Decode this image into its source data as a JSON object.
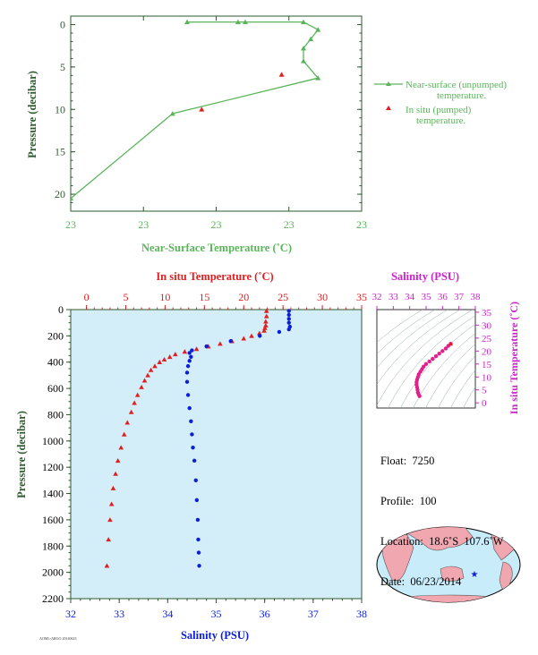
{
  "colors": {
    "green": "#5ab55a",
    "red": "#e02020",
    "blue": "#0a1fd6",
    "magenta": "#cc22cc",
    "axis_dark_green": "#2f5a2f",
    "plot_bg": "#d4eef9",
    "land": "#f1a7b0",
    "ocean": "#c9ecfa"
  },
  "info": {
    "float": "Float:  7250",
    "profile": "Profile:  100",
    "location": "Location:  18.6˚S  107.6˚W",
    "date": "Date:  06/23/2014"
  },
  "footnote": "AOML-ARGO 20140623",
  "chart_data": [
    {
      "id": "near-surface",
      "type": "line",
      "xlabel": "Near-Surface Temperature (˚C)",
      "ylabel": "Pressure (decibar)",
      "x_tick_labels": [
        "23",
        "23",
        "23",
        "23",
        "23"
      ],
      "y_ticks": [
        0,
        5,
        10,
        15,
        20
      ],
      "ylim": [
        22,
        -1
      ],
      "grid": false,
      "series": [
        {
          "name": "Near-surface (unpumped) temperature.",
          "marker": "triangle",
          "x": [
            23.16,
            23.23,
            23.24,
            23.32,
            23.34,
            23.33,
            23.32,
            23.32,
            23.34,
            23.14,
            23.0
          ],
          "y": [
            -0.3,
            -0.3,
            -0.3,
            -0.3,
            0.6,
            1.7,
            2.8,
            4.3,
            6.3,
            10.5,
            20.5
          ]
        },
        {
          "name": "In situ (pumped) temperature.",
          "marker": "triangle",
          "x": [
            23.29,
            23.18
          ],
          "y": [
            5.9,
            10.0
          ]
        }
      ],
      "legend_position": "right"
    },
    {
      "id": "profile",
      "type": "scatter",
      "top_xlabel": "In situ Temperature (˚C)",
      "top_x_ticks": [
        0,
        5,
        10,
        15,
        20,
        25,
        30,
        35
      ],
      "top_xlim": [
        -2,
        35
      ],
      "bottom_xlabel": "Salinity (PSU)",
      "bottom_x_ticks": [
        32,
        33,
        34,
        35,
        36,
        37,
        38
      ],
      "bottom_xlim": [
        32,
        38
      ],
      "ylabel": "Pressure (decibar)",
      "y_ticks": [
        0,
        200,
        400,
        600,
        800,
        1000,
        1200,
        1400,
        1600,
        1800,
        2000,
        2200
      ],
      "ylim": [
        2200,
        0
      ],
      "series": [
        {
          "name": "In situ Temperature",
          "marker": "triangle",
          "temperature": [
            22.9,
            22.9,
            22.8,
            22.8,
            22.7,
            22.6,
            22.0,
            21.0,
            20.0,
            18.5,
            17.0,
            15.5,
            14.0,
            12.5,
            11.3,
            10.6,
            9.9,
            9.3,
            8.7,
            8.2,
            7.8,
            7.4,
            7.0,
            6.5,
            6.1,
            5.7,
            5.2,
            4.8,
            4.4,
            4.0,
            3.7,
            3.4,
            3.2,
            3.0,
            2.8,
            2.6
          ],
          "pressure": [
            10,
            50,
            90,
            120,
            140,
            160,
            180,
            200,
            220,
            240,
            260,
            280,
            300,
            320,
            340,
            360,
            380,
            400,
            430,
            460,
            500,
            540,
            590,
            650,
            710,
            780,
            860,
            950,
            1050,
            1150,
            1250,
            1360,
            1480,
            1600,
            1750,
            1950
          ]
        },
        {
          "name": "Salinity",
          "marker": "dot",
          "salinity": [
            36.5,
            36.5,
            36.5,
            36.5,
            36.52,
            36.5,
            36.3,
            35.9,
            35.3,
            34.8,
            34.5,
            34.45,
            34.48,
            34.45,
            34.42,
            34.4,
            34.4,
            34.42,
            34.45,
            34.48,
            34.5,
            34.52,
            34.55,
            34.58,
            34.6,
            34.62,
            34.63,
            34.64,
            34.65
          ],
          "pressure": [
            10,
            40,
            70,
            100,
            130,
            150,
            170,
            200,
            240,
            280,
            310,
            330,
            360,
            390,
            430,
            480,
            550,
            650,
            750,
            850,
            950,
            1050,
            1150,
            1300,
            1450,
            1600,
            1750,
            1850,
            1950
          ]
        }
      ]
    },
    {
      "id": "ts-inset",
      "type": "scatter",
      "top_xlabel": "Salinity (PSU)",
      "top_x_ticks": [
        32,
        33,
        34,
        35,
        36,
        37,
        38
      ],
      "xlim": [
        32,
        38
      ],
      "right_ylabel": "In situ Temperature (˚C)",
      "y_ticks": [
        0,
        5,
        10,
        15,
        20,
        25,
        30,
        35
      ],
      "ylim": [
        -2,
        36
      ],
      "series": [
        {
          "name": "T-S",
          "marker": "dot",
          "salinity": [
            36.5,
            36.35,
            36.2,
            36.0,
            35.8,
            35.6,
            35.4,
            35.2,
            35.0,
            34.85,
            34.75,
            34.65,
            34.55,
            34.5,
            34.45,
            34.42,
            34.42,
            34.45,
            34.48,
            34.5,
            34.55,
            34.6
          ],
          "temperature": [
            22.8,
            22.0,
            21.0,
            20.0,
            19.0,
            18.0,
            17.0,
            16.0,
            15.0,
            14.0,
            13.0,
            12.0,
            11.0,
            10.0,
            9.0,
            8.0,
            7.0,
            6.0,
            5.0,
            4.0,
            3.2,
            2.6
          ]
        }
      ]
    }
  ]
}
